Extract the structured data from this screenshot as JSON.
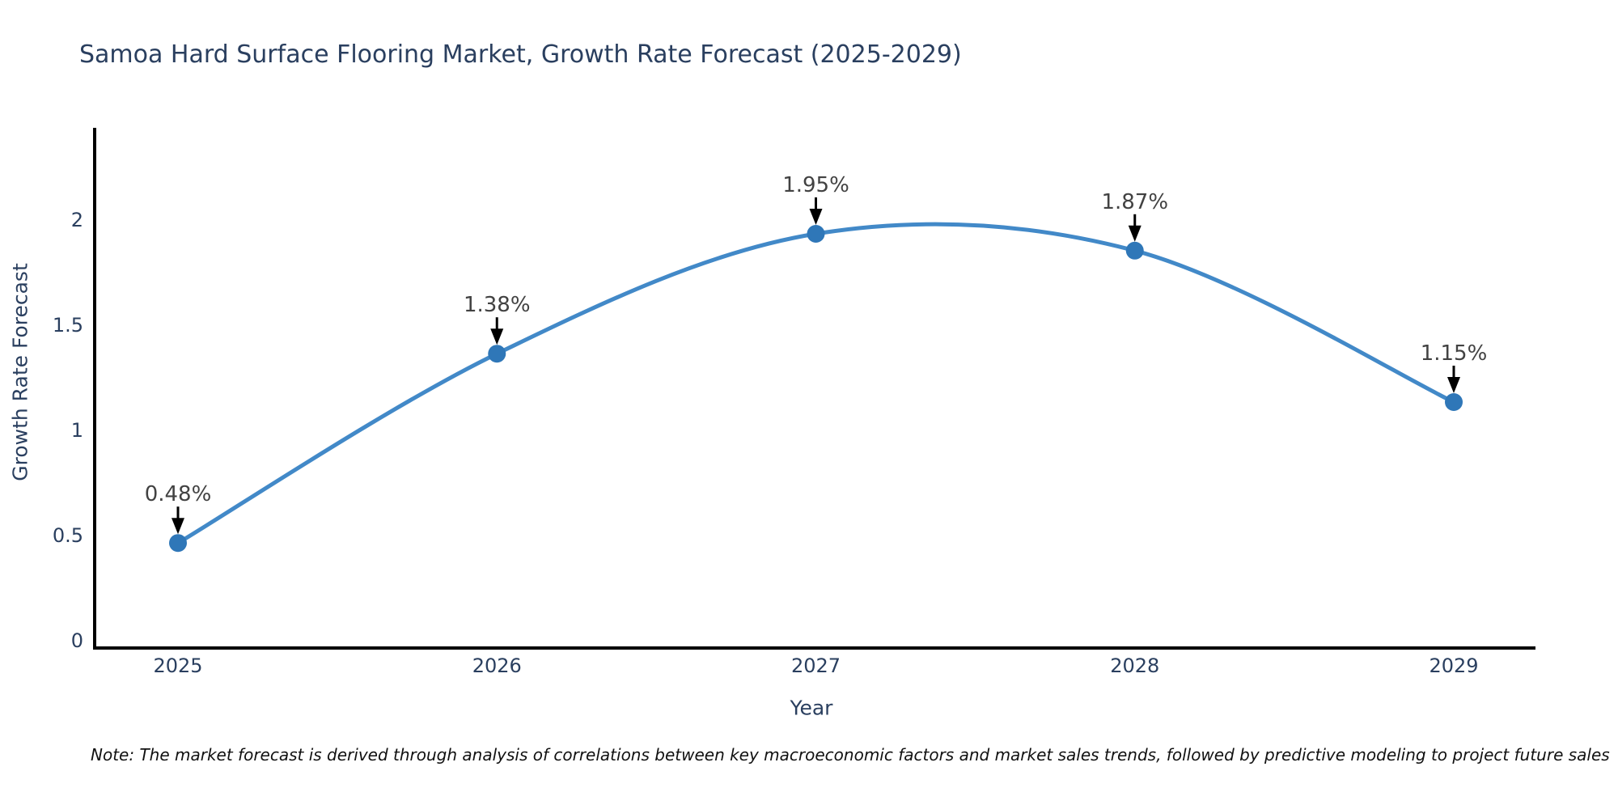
{
  "title": "Samoa Hard Surface Flooring Market, Growth Rate Forecast (2025-2029)",
  "note": "Note: The market forecast is derived through analysis of correlations between key macroeconomic factors and market sales trends, followed by predictive modeling to project future sales",
  "chart_data": {
    "type": "line",
    "title": "Samoa Hard Surface Flooring Market, Growth Rate Forecast (2025-2029)",
    "x": [
      "2025",
      "2026",
      "2027",
      "2028",
      "2029"
    ],
    "series": [
      {
        "name": "Growth Rate Forecast",
        "values": [
          0.48,
          1.38,
          1.95,
          1.87,
          1.15
        ]
      }
    ],
    "point_labels": [
      "0.48%",
      "1.38%",
      "1.95%",
      "1.87%",
      "1.15%"
    ],
    "xlabel": "Year",
    "ylabel": "Growth Rate Forecast",
    "yticks": [
      0,
      0.5,
      1,
      1.5,
      2
    ],
    "ylim": [
      0,
      2.45
    ],
    "line_shape": "spline",
    "grid": false,
    "legend_position": "none",
    "colors": {
      "line": "#4289c8",
      "marker": "#2f77b8",
      "axis": "#000000",
      "tick_text": "#2a3f5f",
      "annotation_text": "#424242",
      "arrow": "#000000",
      "background": "#ffffff"
    }
  }
}
